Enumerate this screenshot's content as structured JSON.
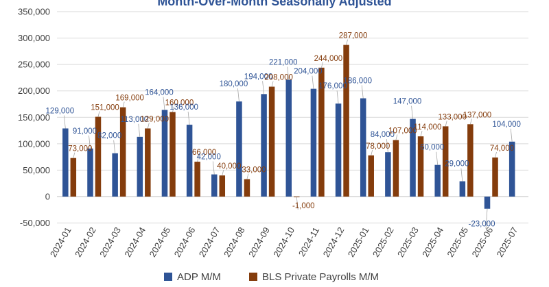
{
  "chart_data": {
    "type": "bar",
    "title": "Month-Over-Month Seasonally Adjusted",
    "xlabel": "",
    "ylabel": "",
    "ylim": [
      -50000,
      350000
    ],
    "yticks": [
      "-50,000",
      "0",
      "50,000",
      "100,000",
      "150,000",
      "200,000",
      "250,000",
      "300,000",
      "350,000"
    ],
    "grid": true,
    "legend_position": "bottom",
    "categories": [
      "2024-01",
      "2024-02",
      "2024-03",
      "2024-04",
      "2024-05",
      "2024-06",
      "2024-07",
      "2024-08",
      "2024-09",
      "2024-10",
      "2024-11",
      "2024-12",
      "2025-01",
      "2025-02",
      "2025-03",
      "2025-04",
      "2025-05",
      "2025-06",
      "2025-07"
    ],
    "series": [
      {
        "name": "ADP M/M",
        "color": "#2f5496",
        "values": [
          129000,
          91000,
          82000,
          113000,
          164000,
          136000,
          42000,
          180000,
          194000,
          221000,
          204000,
          176000,
          186000,
          84000,
          147000,
          60000,
          29000,
          -23000,
          104000
        ],
        "labels": [
          "129,000",
          "91,000",
          "82,000",
          "113,000",
          "164,000",
          "136,000",
          "42,000",
          "180,000",
          "194,000",
          "221,000",
          "204,000",
          "176,000",
          "186,000",
          "84,000",
          "147,000",
          "60,000",
          "29,000",
          "-23,000",
          "104,000"
        ]
      },
      {
        "name": "BLS Private Payrolls M/M",
        "color": "#843c0c",
        "values": [
          73000,
          151000,
          169000,
          129000,
          160000,
          66000,
          40000,
          33000,
          208000,
          -1000,
          244000,
          287000,
          78000,
          107000,
          114000,
          133000,
          137000,
          74000,
          null
        ],
        "labels": [
          "73,000",
          "151,000",
          "169,000",
          "129,000",
          "160,000",
          "66,000",
          "40,000",
          "33,000",
          "208,000",
          "-1,000",
          "244,000",
          "287,000",
          "78,000",
          "107,000",
          "114,000",
          "133,000",
          "137,000",
          "74,000",
          ""
        ]
      }
    ]
  }
}
